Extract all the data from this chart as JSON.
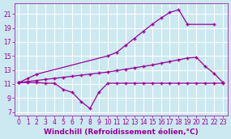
{
  "line1_x": [
    0,
    1,
    2,
    10,
    11,
    12,
    13,
    14,
    15,
    16,
    17,
    18,
    19,
    22
  ],
  "line1_y": [
    11.2,
    11.8,
    12.4,
    15.0,
    15.5,
    16.5,
    17.5,
    18.5,
    19.5,
    20.4,
    21.2,
    21.6,
    19.5,
    19.5
  ],
  "line2_x": [
    0,
    1,
    2,
    3,
    4,
    5,
    6,
    7,
    8,
    9,
    10,
    11,
    12,
    13,
    14,
    15,
    16,
    17,
    18,
    19,
    20,
    21,
    22,
    23
  ],
  "line2_y": [
    11.2,
    11.35,
    11.5,
    11.65,
    11.8,
    11.95,
    12.1,
    12.25,
    12.4,
    12.55,
    12.7,
    12.9,
    13.1,
    13.3,
    13.5,
    13.7,
    13.95,
    14.2,
    14.45,
    14.7,
    14.8,
    13.5,
    12.5,
    11.2
  ],
  "line3_x": [
    0,
    1,
    2,
    3,
    4,
    5,
    6,
    7,
    8,
    9,
    10,
    11,
    12,
    13,
    14,
    15,
    16,
    17,
    18,
    19,
    20,
    21,
    22,
    23
  ],
  "line3_y": [
    11.2,
    11.2,
    11.2,
    11.1,
    11.1,
    10.2,
    9.8,
    8.5,
    7.5,
    9.8,
    11.1,
    11.1,
    11.1,
    11.1,
    11.1,
    11.1,
    11.1,
    11.1,
    11.1,
    11.1,
    11.1,
    11.1,
    11.1,
    11.1
  ],
  "line_color": "#990099",
  "bg_color": "#cce8f0",
  "grid_color": "#ffffff",
  "xlabel": "Windchill (Refroidissement éolien,°C)",
  "xlabel_color": "#990099",
  "ylabel_ticks": [
    7,
    9,
    11,
    13,
    15,
    17,
    19,
    21
  ],
  "xtick_labels": [
    "0",
    "1",
    "2",
    "3",
    "4",
    "5",
    "6",
    "7",
    "8",
    "9",
    "10",
    "11",
    "12",
    "13",
    "14",
    "15",
    "16",
    "17",
    "18",
    "19",
    "20",
    "21",
    "22",
    "23"
  ],
  "xlim": [
    -0.5,
    23.5
  ],
  "ylim": [
    6.5,
    22.5
  ],
  "tick_fontsize": 5.5,
  "xlabel_fontsize": 6.5,
  "marker": "+",
  "markersize": 3.5,
  "linewidth": 0.9
}
